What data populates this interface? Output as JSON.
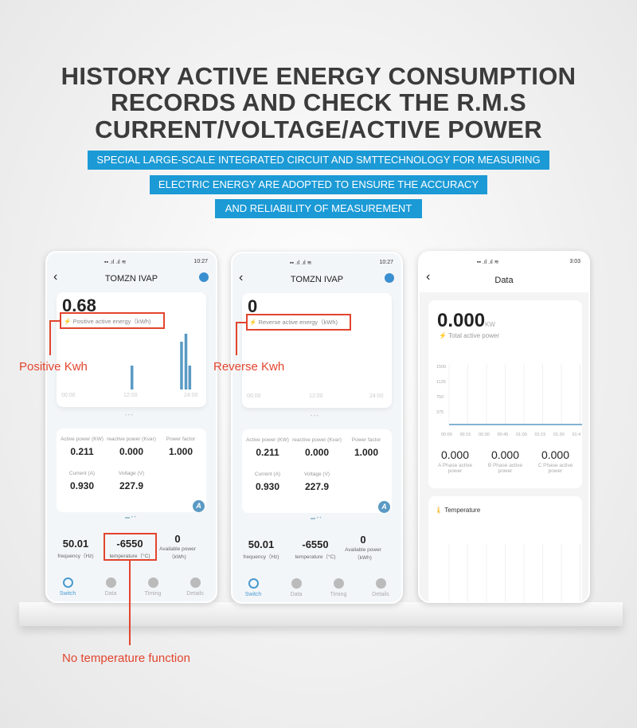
{
  "headline": [
    "HISTORY ACTIVE ENERGY CONSUMPTION",
    "RECORDS AND CHECK THE R.M.S",
    "CURRENT/VOLTAGE/ACTIVE POWER"
  ],
  "bands": [
    "SPECIAL LARGE-SCALE INTEGRATED CIRCUIT AND SMTTECHNOLOGY FOR MEASURING",
    "ELECTRIC ENERGY ARE ADOPTED TO ENSURE THE ACCURACY",
    "AND RELIABILITY OF MEASUREMENT"
  ],
  "colors": {
    "accent": "#1b9ad6",
    "annotation": "#e2452e",
    "bar": "#5a9ac4"
  },
  "phones": [
    {
      "status_time": "10:27",
      "title": "TOMZN IVAP",
      "energy_value": "0.68",
      "energy_label": "Positive active energy（kWh)",
      "axis": [
        "00:00",
        "12:00",
        "24:00"
      ],
      "bars": [
        {
          "hour": 12.5,
          "value": 0.3
        },
        {
          "hour": 21.5,
          "value": 0.6
        },
        {
          "hour": 22.3,
          "value": 0.7
        },
        {
          "hour": 23.0,
          "value": 0.3
        }
      ],
      "metrics": [
        {
          "label": "Active power (KW)",
          "value": "0.211"
        },
        {
          "label": "reactive power (Kvar)",
          "value": "0.000"
        },
        {
          "label": "Power factor",
          "value": "1.000"
        },
        {
          "label": "Current (A)",
          "value": "0.930"
        },
        {
          "label": "Voltage (V)",
          "value": "227.9"
        }
      ],
      "bottom": [
        {
          "value": "50.01",
          "label": "frequency（Hz)"
        },
        {
          "value": "-6550",
          "label": "temperature（°C)"
        },
        {
          "value": "0",
          "label": "Available power（kWh)"
        }
      ],
      "nav": [
        "Switch",
        "Data",
        "Timing",
        "Details"
      ]
    },
    {
      "status_time": "10:27",
      "title": "TOMZN IVAP",
      "energy_value": "0",
      "energy_label": "Reverse active energy（kWh)",
      "axis": [
        "00:00",
        "12:00",
        "24:00"
      ],
      "bars": [],
      "metrics": [
        {
          "label": "Active power (KW)",
          "value": "0.211"
        },
        {
          "label": "reactive power (Kvar)",
          "value": "0.000"
        },
        {
          "label": "Power factor",
          "value": "1.000"
        },
        {
          "label": "Current (A)",
          "value": "0.930"
        },
        {
          "label": "Voltage (V)",
          "value": "227.9"
        }
      ],
      "bottom": [
        {
          "value": "50.01",
          "label": "frequency（Hz)"
        },
        {
          "value": "-6550",
          "label": "temperature（°C)"
        },
        {
          "value": "0",
          "label": "Available power（kWh)"
        }
      ],
      "nav": [
        "Switch",
        "Data",
        "Timing",
        "Details"
      ]
    }
  ],
  "data_phone": {
    "status_time": "3:03",
    "title": "Data",
    "value": "0.000",
    "unit": "KW",
    "label": "Total active power",
    "y_ticks": [
      "1500",
      "1125",
      "750",
      "375"
    ],
    "x_ticks": [
      "00:00",
      "00:15",
      "00:30",
      "00:45",
      "01:00",
      "01:15",
      "01:30",
      "01:4"
    ],
    "phases": [
      {
        "value": "0.000",
        "label": "A Phase active power"
      },
      {
        "value": "0.000",
        "label": "B Phase active power"
      },
      {
        "value": "0.000",
        "label": "C Phase active power"
      }
    ],
    "temperature_label": "Temperature"
  },
  "annotations": {
    "positive": "Positive Kwh",
    "reverse": "Reverse Kwh",
    "temperature": "No temperature function"
  }
}
